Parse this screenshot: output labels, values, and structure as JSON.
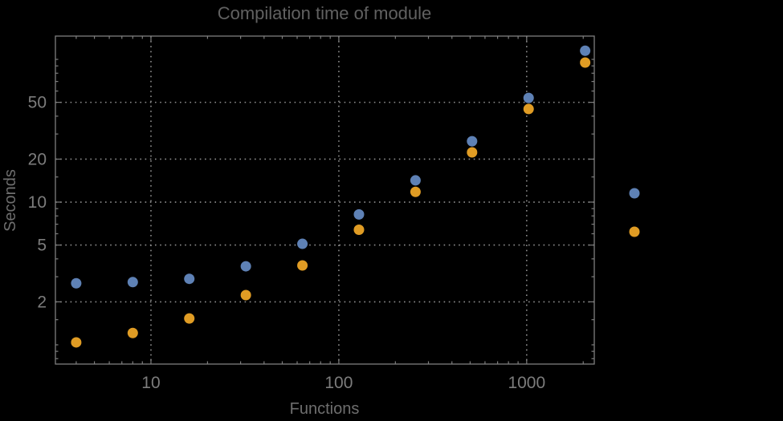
{
  "chart_data": {
    "type": "scatter",
    "title": "Compilation time of module",
    "xlabel": "Functions",
    "ylabel": "Seconds",
    "xscale": "log",
    "yscale": "log",
    "xlim": [
      3.1,
      2290
    ],
    "ylim": [
      0.733,
      145.6
    ],
    "grid": "dotted",
    "legend_position": "right-outside",
    "x": [
      4,
      8,
      16,
      32,
      64,
      128,
      256,
      512,
      1024,
      2048
    ],
    "series": [
      {
        "name": "blue",
        "color": "#5E81B5",
        "values": [
          2.7,
          2.75,
          2.9,
          3.55,
          5.1,
          8.2,
          14.2,
          26.7,
          53.7,
          115
        ]
      },
      {
        "name": "orange",
        "color": "#E09C24",
        "values": [
          1.04,
          1.21,
          1.53,
          2.23,
          3.6,
          6.4,
          11.8,
          22.3,
          44.9,
          95
        ]
      }
    ],
    "x_ticks": [
      10,
      100,
      1000
    ],
    "x_minor_ticks": [
      4,
      5,
      6,
      7,
      8,
      9,
      20,
      30,
      40,
      50,
      60,
      70,
      80,
      90,
      200,
      300,
      400,
      500,
      600,
      700,
      800,
      900,
      2000
    ],
    "y_ticks": [
      2,
      5,
      10,
      20,
      50
    ],
    "y_minor_ticks": [
      0.8,
      0.9,
      1,
      1.5,
      3,
      4,
      6,
      7,
      8,
      9,
      15,
      30,
      40,
      60,
      70,
      80,
      90,
      100
    ],
    "marker_radius": 6.5
  },
  "colors": {
    "background": "#000000",
    "grid": "#8f8f8f",
    "frame": "#7e7e7e",
    "tick_label": "#7c7c7c",
    "axis_label": "#6e6e6e",
    "title": "#616161"
  }
}
